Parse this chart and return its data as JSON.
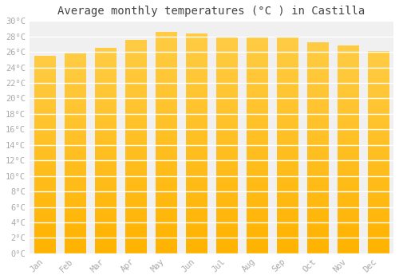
{
  "title": "Average monthly temperatures (°C ) in Castilla",
  "months": [
    "Jan",
    "Feb",
    "Mar",
    "Apr",
    "May",
    "Jun",
    "Jul",
    "Aug",
    "Sep",
    "Oct",
    "Nov",
    "Dec"
  ],
  "values": [
    25.5,
    25.8,
    26.5,
    27.5,
    28.5,
    28.3,
    27.8,
    27.9,
    27.8,
    27.2,
    26.8,
    26.1
  ],
  "ylim": [
    0,
    30
  ],
  "ytick_step": 2,
  "bar_color_bottom": "#FFB300",
  "bar_color_top": "#FFCC44",
  "background_color": "#ffffff",
  "plot_bg_color": "#f0f0f0",
  "grid_color": "#ffffff",
  "title_fontsize": 10,
  "tick_fontsize": 7.5,
  "title_font_family": "monospace",
  "tick_font_family": "monospace"
}
